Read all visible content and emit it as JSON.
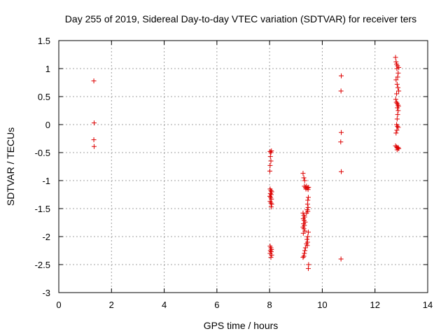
{
  "chart_data": {
    "type": "scatter",
    "title": "Day 255 of 2019, Sidereal Day-to-day VTEC variation (SDTVAR) for receiver ters",
    "xlabel": "GPS time / hours",
    "ylabel": "SDTVAR / TECUs",
    "xlim": [
      0,
      14
    ],
    "ylim": [
      -3,
      1.5
    ],
    "x_ticks": [
      0,
      2,
      4,
      6,
      8,
      10,
      12,
      14
    ],
    "x_tick_labels": [
      "0",
      "2",
      "4",
      "6",
      "8",
      "10",
      "12",
      "14"
    ],
    "y_ticks": [
      -3,
      -2.5,
      -2,
      -1.5,
      -1,
      -0.5,
      0,
      0.5,
      1,
      1.5
    ],
    "y_tick_labels": [
      "-3",
      "-2.5",
      "-2",
      "-1.5",
      "-1",
      "-0.5",
      "0",
      "0.5",
      "1",
      "1.5"
    ],
    "grid": true,
    "marker": "+",
    "color": "#dd0000",
    "series": [
      {
        "points": [
          [
            1.33,
            0.78
          ],
          [
            1.34,
            0.03
          ],
          [
            1.33,
            -0.27
          ],
          [
            1.34,
            -0.39
          ],
          [
            8.02,
            -0.48
          ],
          [
            8.05,
            -0.5
          ],
          [
            8.07,
            -0.47
          ],
          [
            8.03,
            -0.57
          ],
          [
            8.05,
            -0.65
          ],
          [
            8.02,
            -0.73
          ],
          [
            8.01,
            -0.83
          ],
          [
            8.02,
            -1.15
          ],
          [
            8.05,
            -1.18
          ],
          [
            8.08,
            -1.2
          ],
          [
            8.03,
            -1.23
          ],
          [
            8.06,
            -1.25
          ],
          [
            8.01,
            -1.28
          ],
          [
            8.04,
            -1.3
          ],
          [
            8.07,
            -1.33
          ],
          [
            8.02,
            -1.37
          ],
          [
            8.05,
            -1.4
          ],
          [
            8.08,
            -1.42
          ],
          [
            8.06,
            -1.47
          ],
          [
            8.02,
            -2.17
          ],
          [
            8.05,
            -2.2
          ],
          [
            8.07,
            -2.23
          ],
          [
            8.03,
            -2.25
          ],
          [
            8.06,
            -2.27
          ],
          [
            8.02,
            -2.3
          ],
          [
            8.08,
            -2.33
          ],
          [
            8.05,
            -2.37
          ],
          [
            9.27,
            -0.87
          ],
          [
            9.3,
            -0.95
          ],
          [
            9.33,
            -1.0
          ],
          [
            9.32,
            -1.1
          ],
          [
            9.36,
            -1.12
          ],
          [
            9.4,
            -1.1
          ],
          [
            9.44,
            -1.13
          ],
          [
            9.48,
            -1.12
          ],
          [
            9.38,
            -1.15
          ],
          [
            9.46,
            -1.16
          ],
          [
            9.47,
            -1.3
          ],
          [
            9.45,
            -1.35
          ],
          [
            9.44,
            -1.42
          ],
          [
            9.46,
            -1.48
          ],
          [
            9.43,
            -1.52
          ],
          [
            9.45,
            -1.55
          ],
          [
            9.4,
            -1.58
          ],
          [
            9.27,
            -1.58
          ],
          [
            9.3,
            -1.62
          ],
          [
            9.33,
            -1.65
          ],
          [
            9.28,
            -1.68
          ],
          [
            9.31,
            -1.71
          ],
          [
            9.35,
            -1.74
          ],
          [
            9.29,
            -1.77
          ],
          [
            9.32,
            -1.8
          ],
          [
            9.27,
            -1.83
          ],
          [
            9.3,
            -1.86
          ],
          [
            9.34,
            -1.9
          ],
          [
            9.28,
            -1.94
          ],
          [
            9.47,
            -1.92
          ],
          [
            9.45,
            -2.0
          ],
          [
            9.42,
            -2.05
          ],
          [
            9.44,
            -2.1
          ],
          [
            9.4,
            -2.13
          ],
          [
            9.43,
            -2.16
          ],
          [
            9.36,
            -2.2
          ],
          [
            9.34,
            -2.25
          ],
          [
            9.32,
            -2.3
          ],
          [
            9.3,
            -2.35
          ],
          [
            9.27,
            -2.37
          ],
          [
            9.48,
            -2.5
          ],
          [
            9.47,
            -2.57
          ],
          [
            10.72,
            0.87
          ],
          [
            10.71,
            0.6
          ],
          [
            10.72,
            -0.14
          ],
          [
            10.7,
            -0.31
          ],
          [
            10.72,
            -0.84
          ],
          [
            10.71,
            -2.4
          ],
          [
            12.78,
            1.2
          ],
          [
            12.8,
            1.12
          ],
          [
            12.82,
            1.08
          ],
          [
            12.85,
            1.05
          ],
          [
            12.9,
            1.02
          ],
          [
            12.83,
            1.0
          ],
          [
            12.88,
            0.92
          ],
          [
            12.86,
            0.85
          ],
          [
            12.8,
            0.8
          ],
          [
            12.84,
            0.72
          ],
          [
            12.87,
            0.66
          ],
          [
            12.9,
            0.6
          ],
          [
            12.82,
            0.55
          ],
          [
            12.79,
            0.45
          ],
          [
            12.81,
            0.4
          ],
          [
            12.84,
            0.38
          ],
          [
            12.87,
            0.35
          ],
          [
            12.89,
            0.33
          ],
          [
            12.85,
            0.3
          ],
          [
            12.88,
            0.25
          ],
          [
            12.86,
            0.18
          ],
          [
            12.84,
            0.1
          ],
          [
            12.82,
            0.0
          ],
          [
            12.85,
            -0.03
          ],
          [
            12.88,
            -0.05
          ],
          [
            12.83,
            -0.1
          ],
          [
            12.8,
            -0.15
          ],
          [
            12.78,
            -0.38
          ],
          [
            12.82,
            -0.4
          ],
          [
            12.85,
            -0.42
          ],
          [
            12.88,
            -0.41
          ],
          [
            12.9,
            -0.43
          ],
          [
            12.84,
            -0.45
          ]
        ]
      }
    ]
  }
}
